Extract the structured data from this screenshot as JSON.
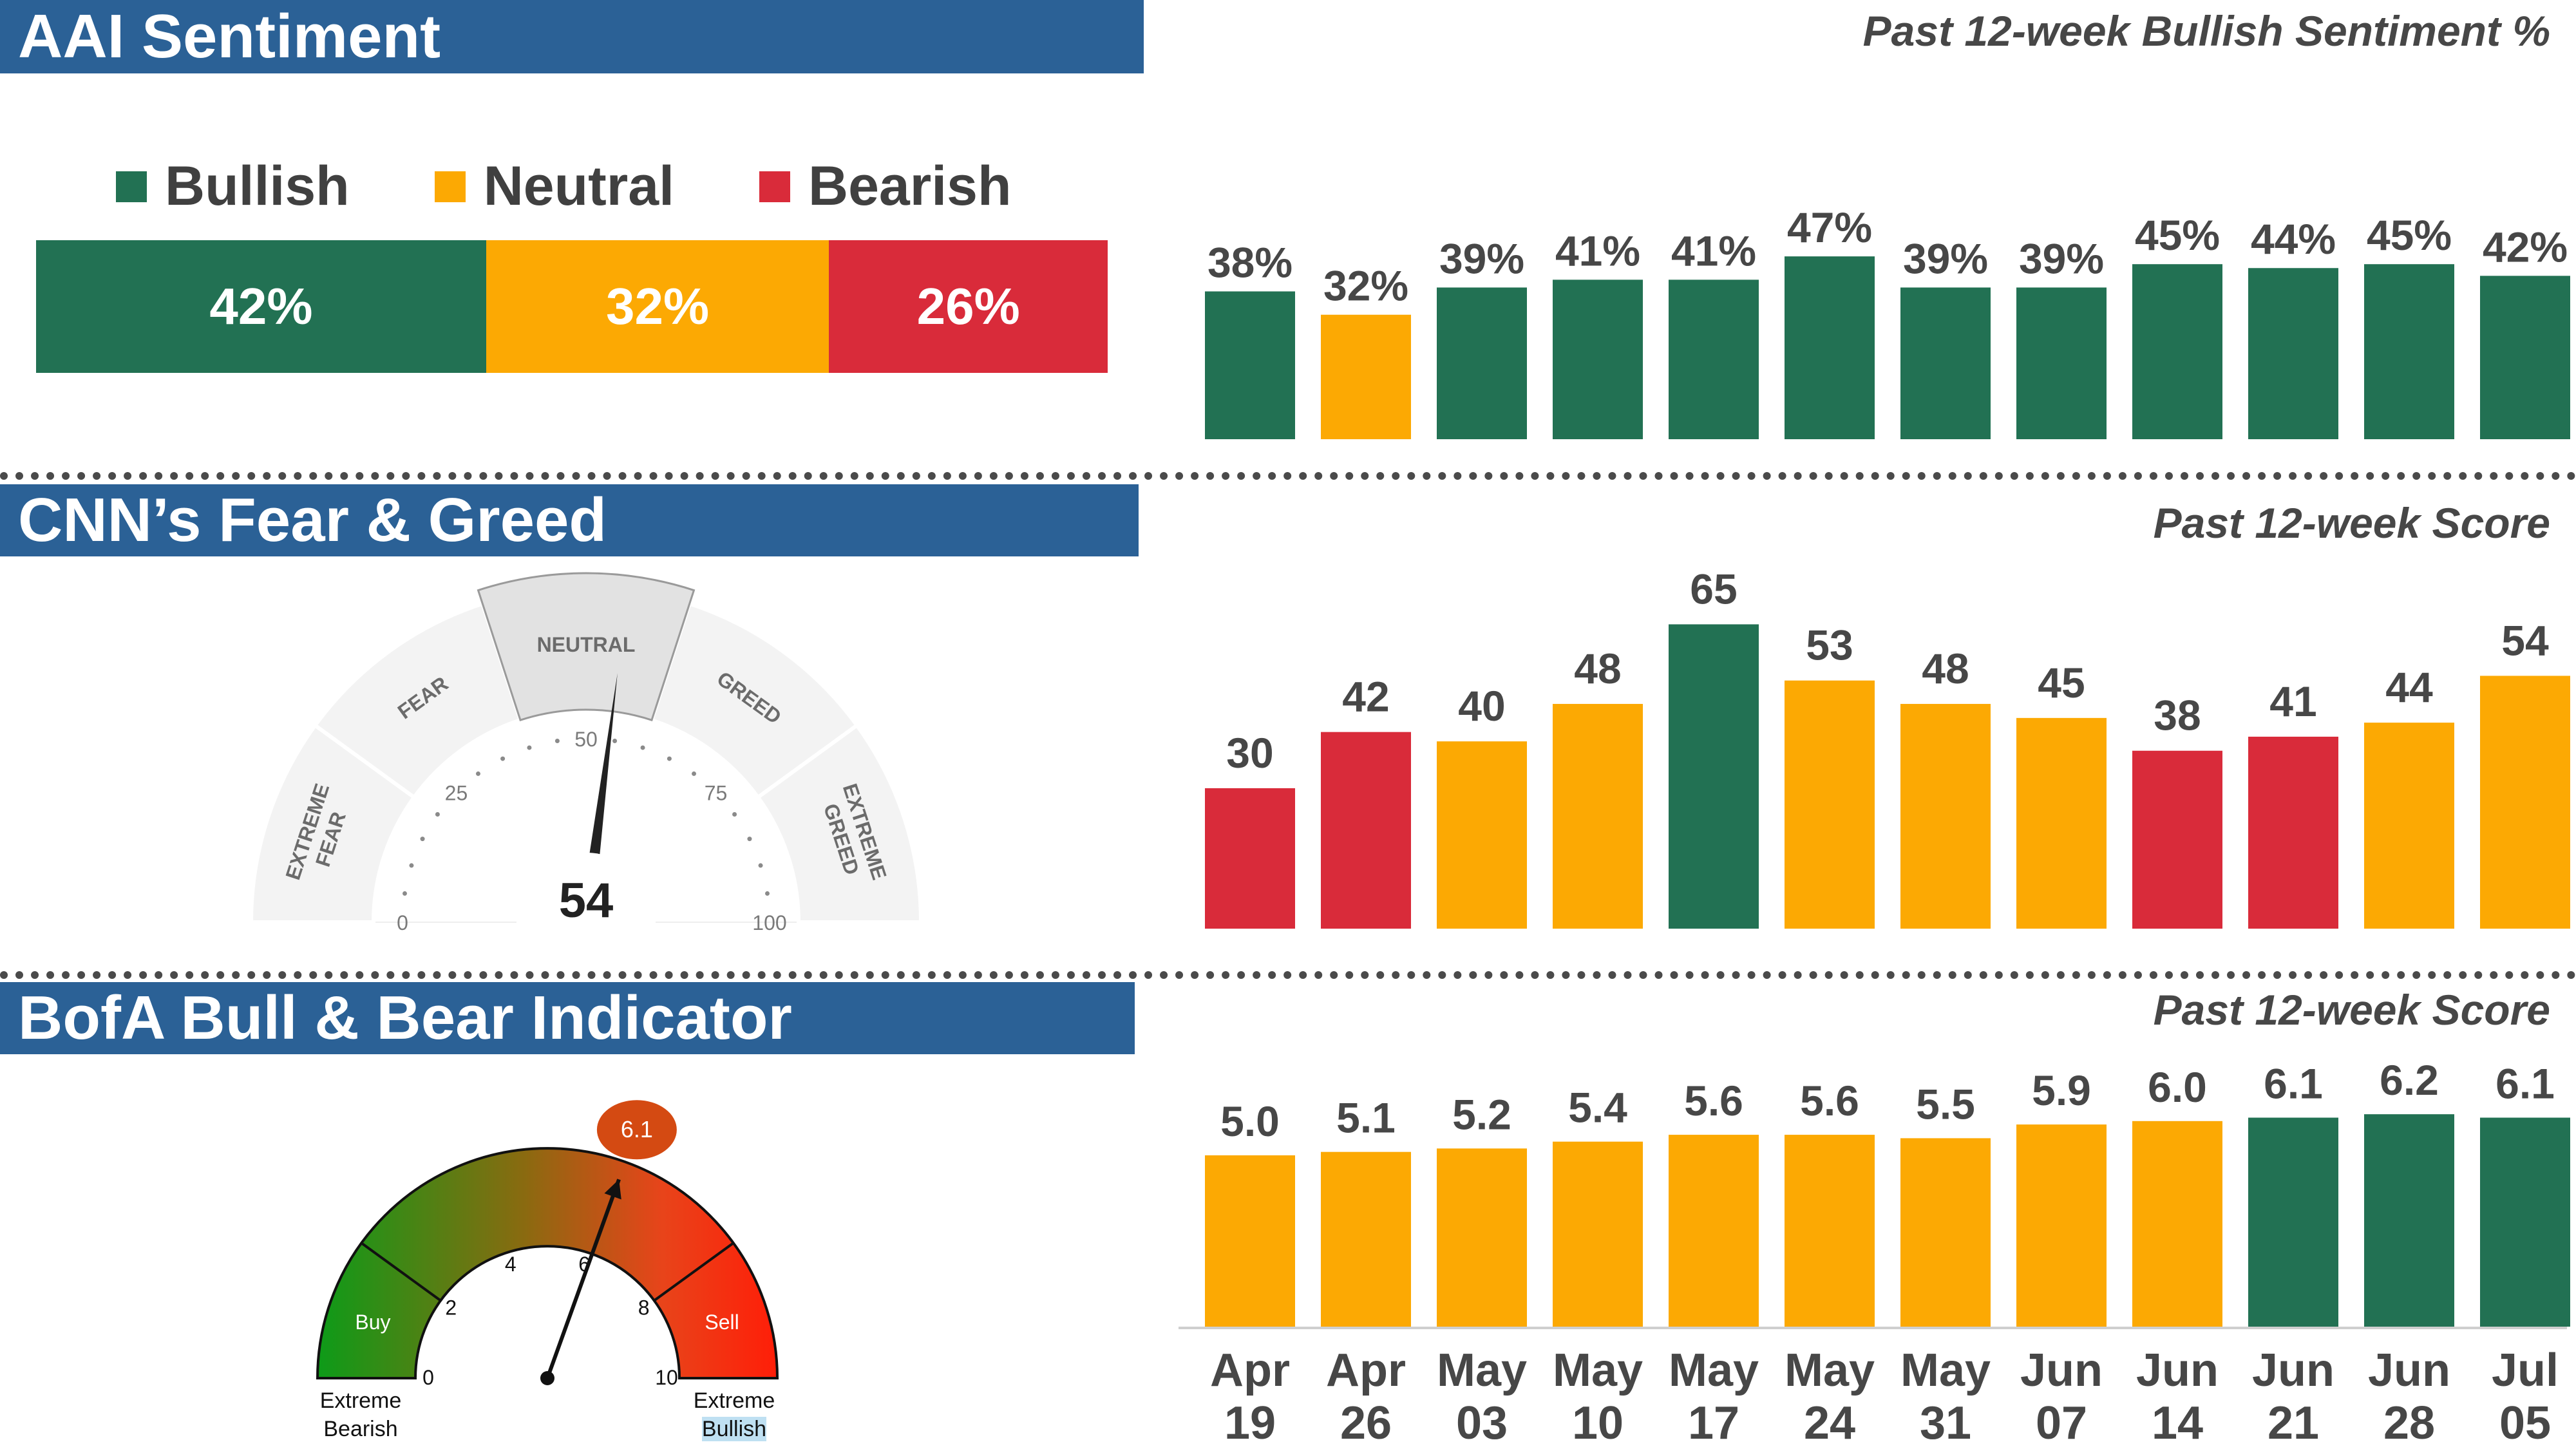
{
  "colors": {
    "green": "#227153",
    "amber": "#fca903",
    "red": "#d92b3a",
    "banner": "#2b6196"
  },
  "aai": {
    "title": "AAI Sentiment",
    "legend": [
      {
        "label": "Bullish",
        "color": "#227153"
      },
      {
        "label": "Neutral",
        "color": "#fca903"
      },
      {
        "label": "Bearish",
        "color": "#d92b3a"
      }
    ],
    "bar_labels": [
      "42%",
      "32%",
      "26%"
    ],
    "chart_title": "Past 12-week Bullish Sentiment %"
  },
  "cnn": {
    "title": "CNN’s Fear & Greed",
    "chart_title": "Past 12-week Score",
    "gauge": {
      "zones": [
        "EXTREME FEAR",
        "FEAR",
        "NEUTRAL",
        "GREED",
        "EXTREME GREED"
      ],
      "ticks": [
        "0",
        "25",
        "50",
        "75",
        "100"
      ],
      "value": 54,
      "value_text": "54"
    }
  },
  "bofa": {
    "title": "BofA Bull & Bear Indicator",
    "chart_title": "Past 12-week Score",
    "gauge": {
      "ticks": [
        "0",
        "2",
        "4",
        "6",
        "8",
        "10"
      ],
      "value": 6.1,
      "value_text": "6.1",
      "buy_label": "Buy",
      "sell_label": "Sell",
      "left_caption": [
        "Extreme",
        "Bearish"
      ],
      "right_caption": [
        "Extreme",
        "Bullish"
      ]
    }
  },
  "chart_data": [
    {
      "type": "stacked-bar",
      "categories": [
        "Bullish",
        "Neutral",
        "Bearish"
      ],
      "values": [
        42,
        32,
        26
      ],
      "labels": [
        "42%",
        "32%",
        "26%"
      ],
      "colors": [
        "#227153",
        "#fca903",
        "#d92b3a"
      ]
    },
    {
      "type": "bar",
      "title": "Past 12-week Bullish Sentiment %",
      "categories": [
        "Apr 19",
        "Apr 26",
        "May 03",
        "May 10",
        "May 17",
        "May 24",
        "May 31",
        "Jun 07",
        "Jun 14",
        "Jun 21",
        "Jun 28",
        "Jul 05"
      ],
      "values": [
        38,
        32,
        39,
        41,
        41,
        47,
        39,
        39,
        45,
        44,
        45,
        42
      ],
      "labels": [
        "38%",
        "32%",
        "39%",
        "41%",
        "41%",
        "47%",
        "39%",
        "39%",
        "45%",
        "44%",
        "45%",
        "42%"
      ],
      "colors": [
        "#227153",
        "#fca903",
        "#227153",
        "#227153",
        "#227153",
        "#227153",
        "#227153",
        "#227153",
        "#227153",
        "#227153",
        "#227153",
        "#227153"
      ],
      "ylim": [
        0,
        50
      ]
    },
    {
      "type": "bar",
      "title": "Past 12-week Score",
      "categories": [
        "Apr 19",
        "Apr 26",
        "May 03",
        "May 10",
        "May 17",
        "May 24",
        "May 31",
        "Jun 07",
        "Jun 14",
        "Jun 21",
        "Jun 28",
        "Jul 05"
      ],
      "values": [
        30,
        42,
        40,
        48,
        65,
        53,
        48,
        45,
        38,
        41,
        44,
        54
      ],
      "labels": [
        "30",
        "42",
        "40",
        "48",
        "65",
        "53",
        "48",
        "45",
        "38",
        "41",
        "44",
        "54"
      ],
      "colors": [
        "#d92b3a",
        "#d92b3a",
        "#fca903",
        "#fca903",
        "#227153",
        "#fca903",
        "#fca903",
        "#fca903",
        "#d92b3a",
        "#d92b3a",
        "#fca903",
        "#fca903"
      ],
      "ylim": [
        0,
        70
      ]
    },
    {
      "type": "bar",
      "title": "Past 12-week Score",
      "categories": [
        "Apr 19",
        "Apr 26",
        "May 03",
        "May 10",
        "May 17",
        "May 24",
        "May 31",
        "Jun 07",
        "Jun 14",
        "Jun 21",
        "Jun 28",
        "Jul 05"
      ],
      "values": [
        5.0,
        5.1,
        5.2,
        5.4,
        5.6,
        5.6,
        5.5,
        5.9,
        6.0,
        6.1,
        6.2,
        6.1
      ],
      "labels": [
        "5.0",
        "5.1",
        "5.2",
        "5.4",
        "5.6",
        "5.6",
        "5.5",
        "5.9",
        "6.0",
        "6.1",
        "6.2",
        "6.1"
      ],
      "colors": [
        "#fca903",
        "#fca903",
        "#fca903",
        "#fca903",
        "#fca903",
        "#fca903",
        "#fca903",
        "#fca903",
        "#fca903",
        "#227153",
        "#227153",
        "#227153"
      ],
      "ylim": [
        0,
        6.2
      ]
    }
  ],
  "x_axis": {
    "months": [
      "Apr",
      "Apr",
      "May",
      "May",
      "May",
      "May",
      "May",
      "Jun",
      "Jun",
      "Jun",
      "Jun",
      "Jul"
    ],
    "days": [
      "19",
      "26",
      "03",
      "10",
      "17",
      "24",
      "31",
      "07",
      "14",
      "21",
      "28",
      "05"
    ]
  }
}
